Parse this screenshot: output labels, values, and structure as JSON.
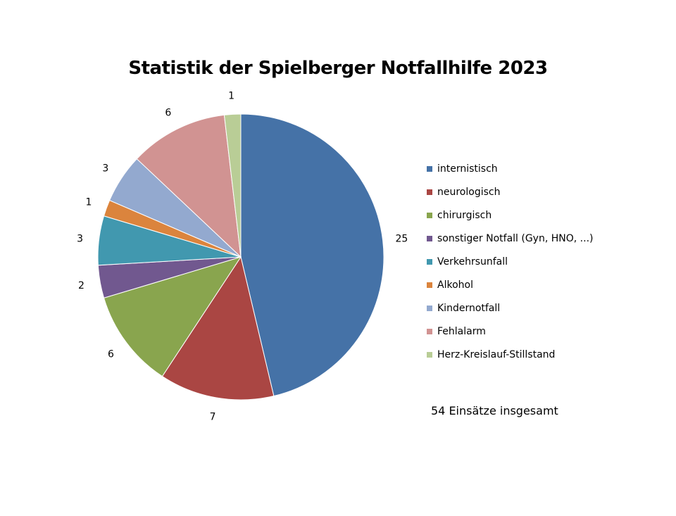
{
  "chart_data": {
    "type": "pie",
    "title": "Statistik der Spielberger Notfallhilfe 2023",
    "categories": [
      "internistisch",
      "neurologisch",
      "chirurgisch",
      "sonstiger Notfall (Gyn, HNO, ...)",
      "Verkehrsunfall",
      "Alkohol",
      "Kindernotfall",
      "Fehlalarm",
      "Herz-Kreislauf-Stillstand"
    ],
    "values": [
      25,
      7,
      6,
      2,
      3,
      1,
      3,
      6,
      1
    ],
    "colors": [
      "#4572A7",
      "#AA4643",
      "#89A54E",
      "#71588F",
      "#4198AF",
      "#DB843D",
      "#93A9CF",
      "#D19392",
      "#B9CD96"
    ],
    "legend_position": "right",
    "start_angle": "12 o'clock",
    "direction": "clockwise"
  },
  "note": "54 Einsätze insgesamt"
}
